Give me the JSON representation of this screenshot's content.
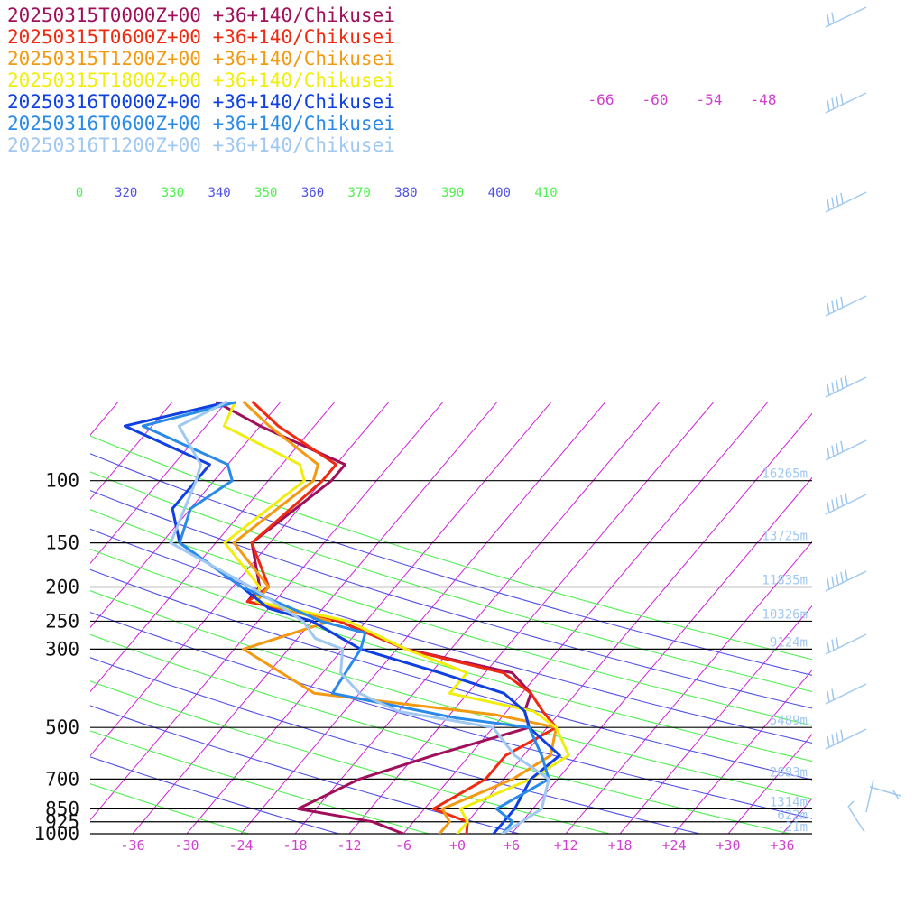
{
  "chart_data": {
    "type": "line",
    "subtype": "skew-t log-p diagram",
    "legend_position": "top-left",
    "legend": [
      {
        "label": "20250315T0000Z+00 +36+140/Chikusei",
        "color": "#a0105a"
      },
      {
        "label": "20250315T0600Z+00 +36+140/Chikusei",
        "color": "#ee2a10"
      },
      {
        "label": "20250315T1200Z+00 +36+140/Chikusei",
        "color": "#f39a12"
      },
      {
        "label": "20250315T1800Z+00 +36+140/Chikusei",
        "color": "#f0ee10"
      },
      {
        "label": "20250316T0000Z+00 +36+140/Chikusei",
        "color": "#1040e0"
      },
      {
        "label": "20250316T0600Z+00 +36+140/Chikusei",
        "color": "#2a8ae8"
      },
      {
        "label": "20250316T1200Z+00 +36+140/Chikusei",
        "color": "#a0c8f0"
      }
    ],
    "pressure_ticks": [
      "100",
      "150",
      "200",
      "250",
      "300",
      "500",
      "700",
      "850",
      "925",
      "1000"
    ],
    "pressure_values": [
      100,
      150,
      200,
      250,
      300,
      500,
      700,
      850,
      925,
      1000
    ],
    "temperature_ticks": [
      "-36",
      "-30",
      "-24",
      "-18",
      "-12",
      "-6",
      "+0",
      "+6",
      "+12",
      "+18",
      "+24",
      "+30",
      "+36"
    ],
    "temperature_values": [
      -36,
      -30,
      -24,
      -18,
      -12,
      -6,
      0,
      6,
      12,
      18,
      24,
      30,
      36
    ],
    "xlim": [
      -40,
      40
    ],
    "ylim": [
      1000,
      100
    ],
    "height_labels": [
      {
        "p": 100,
        "text": "16265m"
      },
      {
        "p": 150,
        "text": "13725m"
      },
      {
        "p": 200,
        "text": "11835m"
      },
      {
        "p": 250,
        "text": "10326m"
      },
      {
        "p": 300,
        "text": "9124m"
      },
      {
        "p": 500,
        "text": "5489m"
      },
      {
        "p": 700,
        "text": "2883m"
      },
      {
        "p": 850,
        "text": "1314m"
      },
      {
        "p": 925,
        "text": "622m"
      },
      {
        "p": 1000,
        "text": "-21m"
      }
    ],
    "theta_labels": [
      "0",
      "320",
      "330",
      "340",
      "350",
      "360",
      "370",
      "380",
      "390",
      "400",
      "410"
    ],
    "upper_isotherm_labels": [
      "-66",
      "-60",
      "-54",
      "-48"
    ],
    "series": [
      {
        "color": "#a0105a",
        "points": [
          [
            1000,
            -6
          ],
          [
            925,
            -10.5
          ],
          [
            850,
            -20
          ],
          [
            700,
            -16
          ],
          [
            600,
            -10
          ],
          [
            500,
            -2
          ],
          [
            450,
            -4
          ],
          [
            400,
            -5
          ],
          [
            350,
            -9
          ],
          [
            300,
            -23
          ],
          [
            250,
            -33
          ],
          [
            220,
            -45
          ],
          [
            200,
            -45
          ],
          [
            150,
            -50
          ],
          [
            100,
            -47
          ],
          [
            90,
            -47
          ],
          [
            70,
            -60
          ],
          [
            60,
            -67
          ]
        ]
      },
      {
        "color": "#ee2a10",
        "points": [
          [
            1000,
            1
          ],
          [
            925,
            0
          ],
          [
            850,
            -5
          ],
          [
            700,
            -2
          ],
          [
            600,
            -2
          ],
          [
            500,
            1
          ],
          [
            450,
            -2
          ],
          [
            400,
            -5
          ],
          [
            350,
            -10
          ],
          [
            300,
            -23
          ],
          [
            250,
            -33
          ],
          [
            220,
            -45
          ],
          [
            200,
            -44
          ],
          [
            150,
            -50
          ],
          [
            100,
            -48
          ],
          [
            90,
            -48
          ],
          [
            70,
            -58
          ],
          [
            60,
            -63
          ]
        ]
      },
      {
        "color": "#f39a12",
        "points": [
          [
            1000,
            -2
          ],
          [
            925,
            -2
          ],
          [
            850,
            -4
          ],
          [
            700,
            1
          ],
          [
            600,
            3
          ],
          [
            500,
            1
          ],
          [
            460,
            -7
          ],
          [
            400,
            -29
          ],
          [
            300,
            -41
          ],
          [
            250,
            -34
          ],
          [
            220,
            -44
          ],
          [
            200,
            -44
          ],
          [
            150,
            -52
          ],
          [
            100,
            -49
          ],
          [
            90,
            -50
          ],
          [
            70,
            -59
          ],
          [
            60,
            -64
          ]
        ]
      },
      {
        "color": "#f0ee10",
        "points": [
          [
            1000,
            0
          ],
          [
            925,
            0
          ],
          [
            850,
            -2
          ],
          [
            700,
            3
          ],
          [
            600,
            5
          ],
          [
            500,
            1
          ],
          [
            450,
            -3
          ],
          [
            400,
            -14
          ],
          [
            350,
            -14
          ],
          [
            300,
            -23
          ],
          [
            250,
            -32
          ],
          [
            220,
            -44
          ],
          [
            200,
            -45
          ],
          [
            150,
            -53
          ],
          [
            100,
            -50
          ],
          [
            90,
            -52
          ],
          [
            70,
            -64
          ],
          [
            60,
            -65
          ]
        ]
      },
      {
        "color": "#1040e0",
        "points": [
          [
            1000,
            4
          ],
          [
            925,
            4
          ],
          [
            850,
            4
          ],
          [
            700,
            3
          ],
          [
            600,
            4
          ],
          [
            500,
            -2
          ],
          [
            450,
            -4
          ],
          [
            400,
            -8
          ],
          [
            350,
            -17
          ],
          [
            300,
            -28
          ],
          [
            250,
            -36
          ],
          [
            230,
            -42
          ],
          [
            200,
            -47
          ],
          [
            150,
            -58
          ],
          [
            120,
            -62
          ],
          [
            100,
            -62
          ],
          [
            90,
            -62
          ],
          [
            70,
            -75
          ],
          [
            60,
            -66
          ]
        ]
      },
      {
        "color": "#2a8ae8",
        "points": [
          [
            1000,
            5
          ],
          [
            925,
            5
          ],
          [
            850,
            2
          ],
          [
            700,
            5
          ],
          [
            600,
            2
          ],
          [
            500,
            -2
          ],
          [
            470,
            -11
          ],
          [
            400,
            -27
          ],
          [
            300,
            -28
          ],
          [
            270,
            -29
          ],
          [
            250,
            -35
          ],
          [
            200,
            -47
          ],
          [
            150,
            -58
          ],
          [
            120,
            -60
          ],
          [
            100,
            -58
          ],
          [
            90,
            -60
          ],
          [
            70,
            -73
          ],
          [
            60,
            -65
          ]
        ]
      },
      {
        "color": "#a0c8f0",
        "points": [
          [
            1000,
            5
          ],
          [
            925,
            6
          ],
          [
            850,
            7
          ],
          [
            700,
            5
          ],
          [
            600,
            -1
          ],
          [
            500,
            -6
          ],
          [
            450,
            -18
          ],
          [
            400,
            -24
          ],
          [
            350,
            -28
          ],
          [
            300,
            -30
          ],
          [
            280,
            -34
          ],
          [
            250,
            -37
          ],
          [
            200,
            -46
          ],
          [
            150,
            -59
          ],
          [
            100,
            -62
          ],
          [
            90,
            -63
          ],
          [
            70,
            -69
          ],
          [
            60,
            -66
          ]
        ]
      }
    ],
    "isotherm_step": 6,
    "dry_adiabat_thetas": [
      250,
      260,
      270,
      280,
      290,
      300,
      310,
      320,
      330,
      340,
      350,
      360,
      370,
      380,
      390,
      400,
      410
    ],
    "wind_barb_color": "#a0c8f0"
  }
}
